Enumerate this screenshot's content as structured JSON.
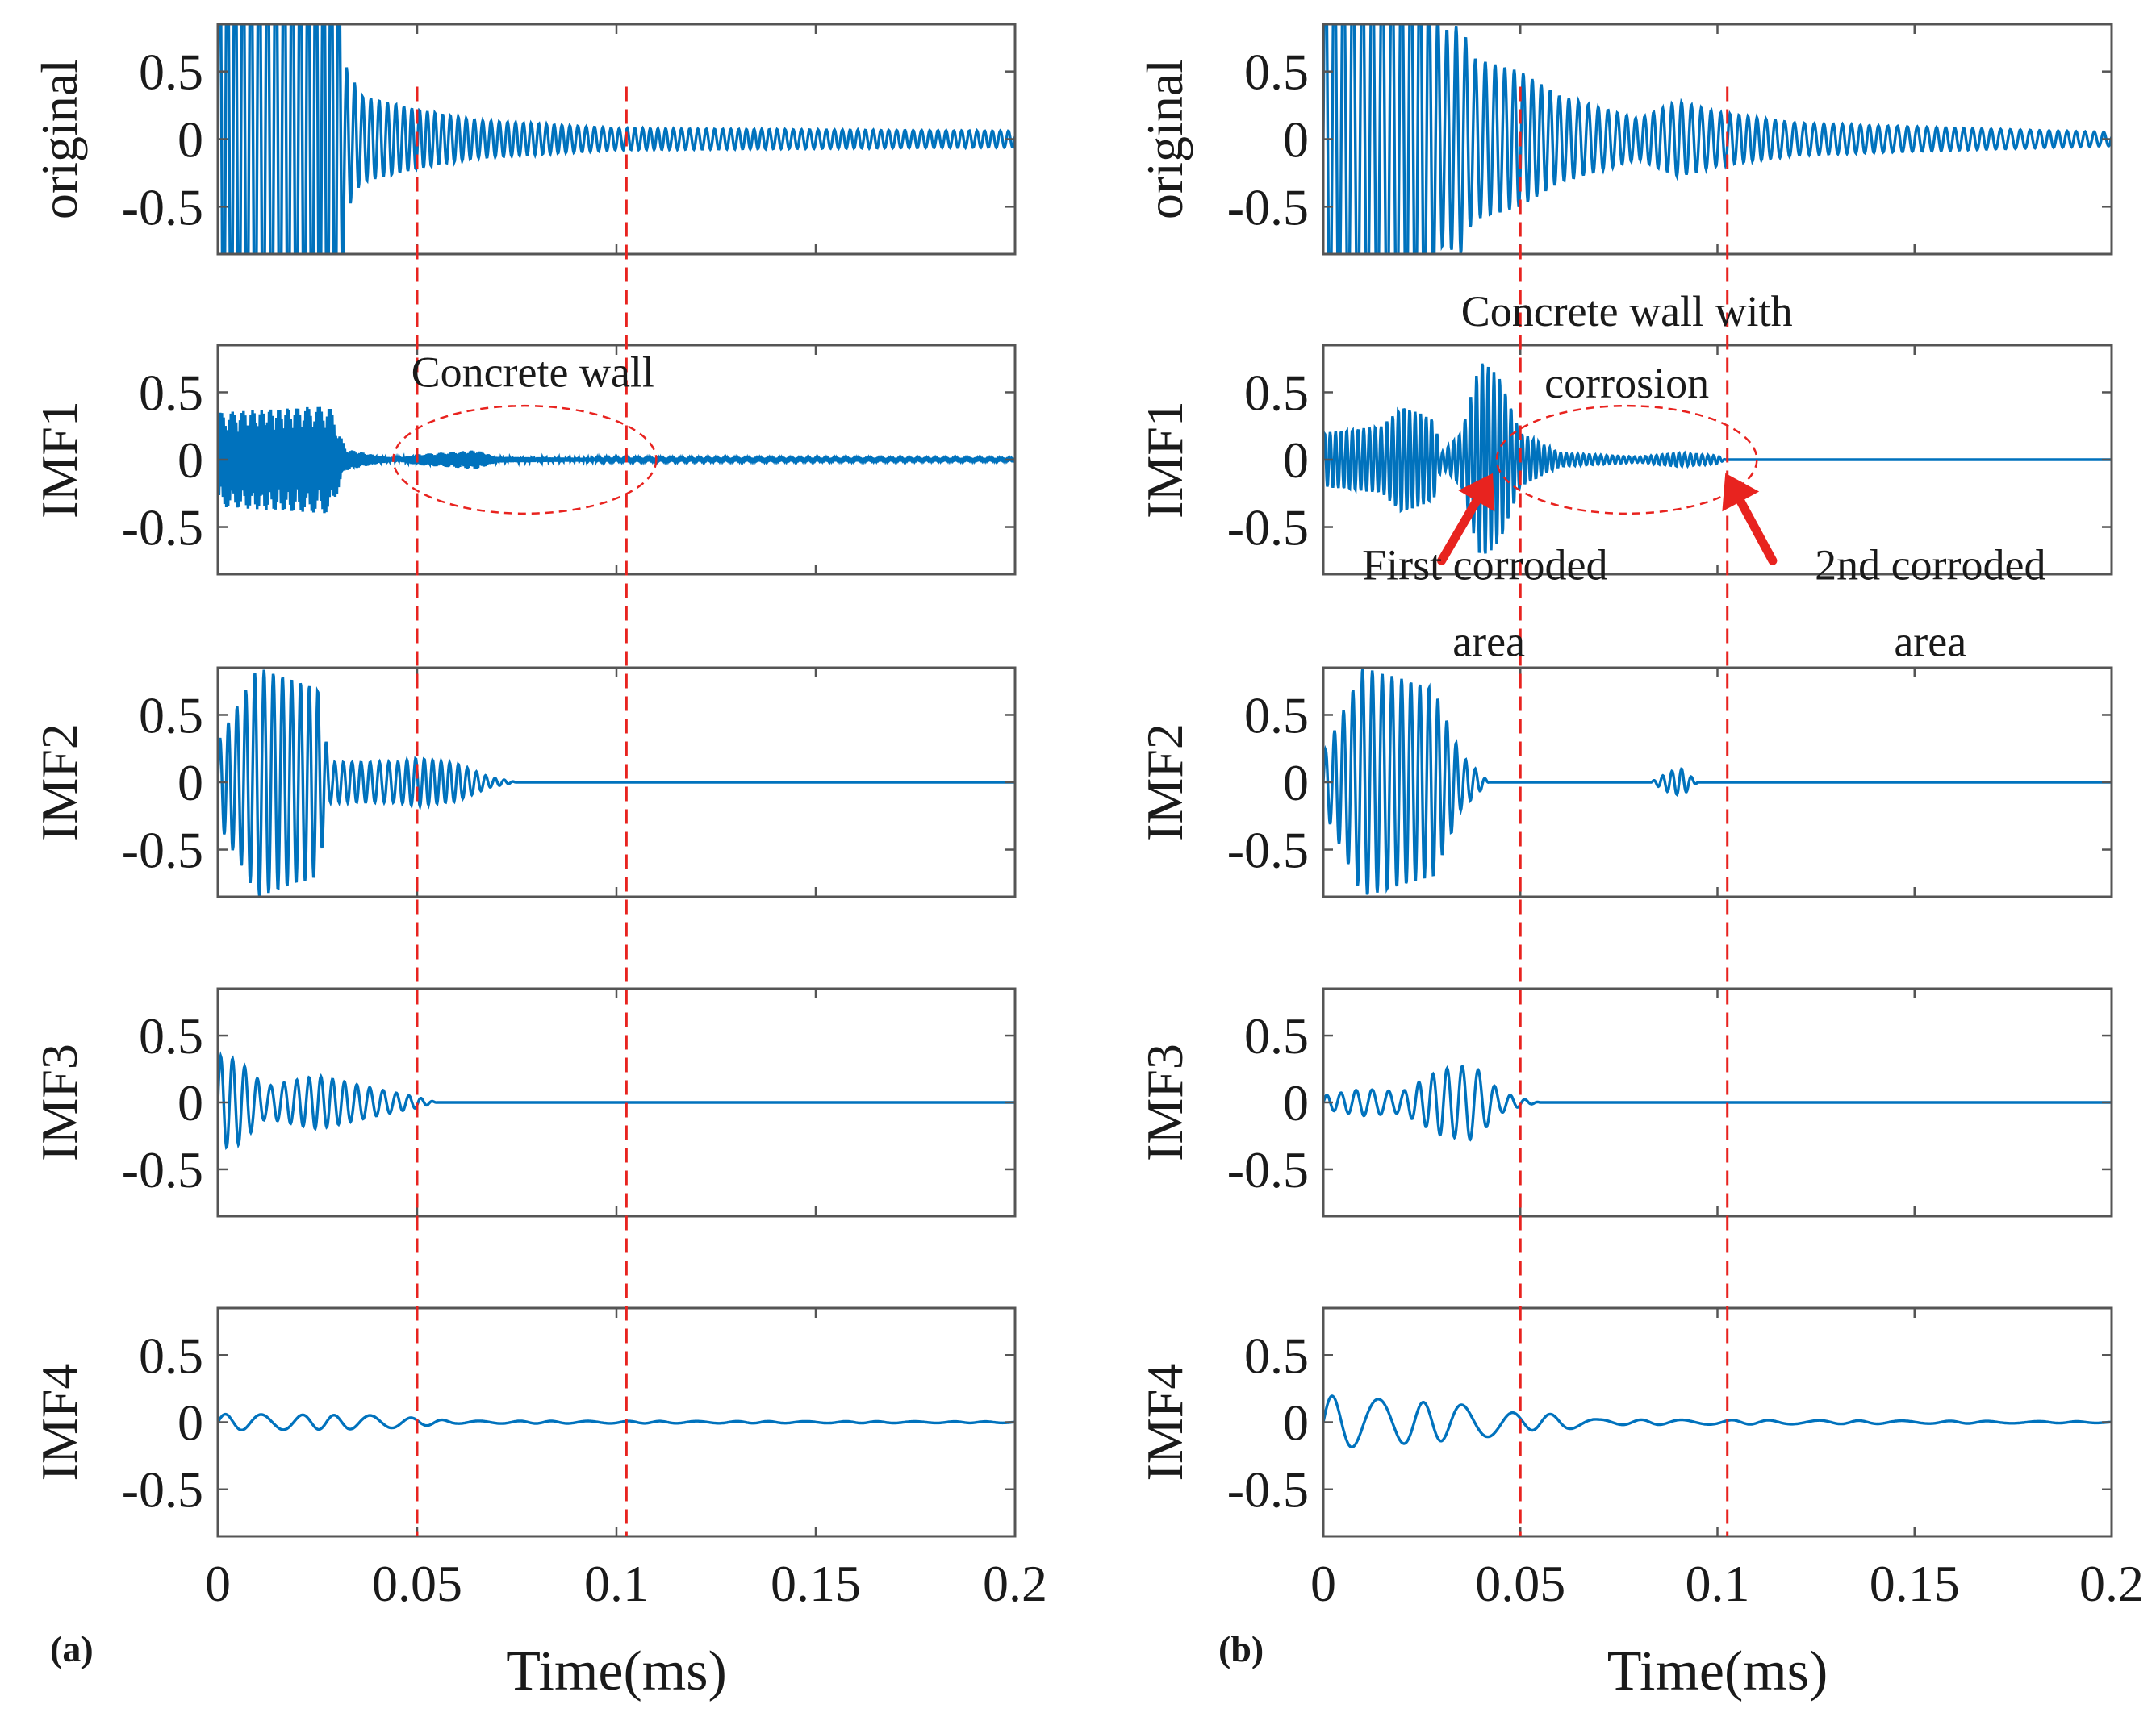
{
  "chart_data": [
    {
      "type": "line",
      "panel_label": "(a)",
      "xlabel": "Time(ms)",
      "xlim": [
        0,
        0.2
      ],
      "x_ticks": [
        "0",
        "0.05",
        "0.1",
        "0.15",
        "0.2"
      ],
      "ylim": [
        -0.85,
        0.85
      ],
      "y_ticks": [
        "0.5",
        "0",
        "-0.5"
      ],
      "grid": false,
      "line_color": "#0072BD",
      "marker_color": "#e8231f",
      "vertical_markers_ms": [
        0.05,
        0.1025
      ],
      "series": [
        {
          "name": "original",
          "envelope": [
            [
              0,
              1.8
            ],
            [
              0.03,
              1.8
            ],
            [
              0.032,
              0.55
            ],
            [
              0.036,
              0.32
            ],
            [
              0.05,
              0.22
            ],
            [
              0.065,
              0.14
            ],
            [
              0.1,
              0.08
            ],
            [
              0.2,
              0.06
            ]
          ],
          "freq": 500,
          "baseline": 0
        },
        {
          "name": "IMF1",
          "envelope": [
            [
              0,
              0.35
            ],
            [
              0.028,
              0.4
            ],
            [
              0.032,
              0.08
            ],
            [
              0.04,
              0.03
            ],
            [
              0.045,
              0.01
            ],
            [
              0.05,
              0.04
            ],
            [
              0.065,
              0.07
            ],
            [
              0.07,
              0.02
            ],
            [
              0.1,
              0.01
            ],
            [
              0.2,
              0.008
            ]
          ],
          "freq": 2200,
          "baseline": 0
        },
        {
          "name": "IMF2",
          "envelope": [
            [
              0,
              0.3
            ],
            [
              0.01,
              0.85
            ],
            [
              0.025,
              0.7
            ],
            [
              0.028,
              0.15
            ],
            [
              0.045,
              0.15
            ],
            [
              0.05,
              0.18
            ],
            [
              0.06,
              0.14
            ],
            [
              0.068,
              0.04
            ],
            [
              0.075,
              0
            ],
            [
              0.2,
              0
            ]
          ],
          "freq": 450,
          "baseline": 0
        },
        {
          "name": "IMF3",
          "envelope": [
            [
              0,
              0.35
            ],
            [
              0.005,
              0.32
            ],
            [
              0.012,
              0.12
            ],
            [
              0.025,
              0.2
            ],
            [
              0.04,
              0.1
            ],
            [
              0.05,
              0.04
            ],
            [
              0.055,
              0
            ],
            [
              0.2,
              0
            ]
          ],
          "freq": 320,
          "baseline": 0
        },
        {
          "name": "IMF4",
          "envelope": [
            [
              0,
              0.06
            ],
            [
              0.04,
              0.05
            ],
            [
              0.05,
              0.03
            ],
            [
              0.06,
              0.01
            ],
            [
              0.2,
              0.005
            ]
          ],
          "freq": 110,
          "baseline": 0
        }
      ],
      "annotations": [
        {
          "text": "Concrete wall",
          "row": "IMF1",
          "x": 0.079,
          "y": 0.65,
          "ellipse": {
            "cx": 0.077,
            "cy": 0,
            "rx": 0.033,
            "ry": 0.4
          }
        }
      ]
    },
    {
      "type": "line",
      "panel_label": "(b)",
      "xlabel": "Time(ms)",
      "xlim": [
        0,
        0.2
      ],
      "x_ticks": [
        "0",
        "0.05",
        "0.1",
        "0.15",
        "0.2"
      ],
      "ylim": [
        -0.85,
        0.85
      ],
      "y_ticks": [
        "0.5",
        "0",
        "-0.5"
      ],
      "grid": false,
      "line_color": "#0072BD",
      "marker_color": "#e8231f",
      "vertical_markers_ms": [
        0.05,
        0.1025
      ],
      "series": [
        {
          "name": "original",
          "envelope": [
            [
              0,
              1.5
            ],
            [
              0.025,
              1.5
            ],
            [
              0.03,
              0.8
            ],
            [
              0.035,
              0.85
            ],
            [
              0.038,
              0.6
            ],
            [
              0.05,
              0.5
            ],
            [
              0.06,
              0.32
            ],
            [
              0.08,
              0.15
            ],
            [
              0.09,
              0.28
            ],
            [
              0.1,
              0.2
            ],
            [
              0.12,
              0.12
            ],
            [
              0.14,
              0.1
            ],
            [
              0.2,
              0.05
            ]
          ],
          "freq": 420,
          "baseline": 0
        },
        {
          "name": "IMF1",
          "envelope": [
            [
              0,
              0.2
            ],
            [
              0.015,
              0.25
            ],
            [
              0.02,
              0.4
            ],
            [
              0.028,
              0.3
            ],
            [
              0.03,
              0.05
            ],
            [
              0.035,
              0.2
            ],
            [
              0.04,
              0.75
            ],
            [
              0.045,
              0.6
            ],
            [
              0.05,
              0.2
            ],
            [
              0.06,
              0.05
            ],
            [
              0.08,
              0.02
            ],
            [
              0.09,
              0.05
            ],
            [
              0.1,
              0.03
            ],
            [
              0.102,
              0
            ],
            [
              0.2,
              0
            ]
          ],
          "freq": 700,
          "baseline": 0
        },
        {
          "name": "IMF2",
          "envelope": [
            [
              0,
              0.2
            ],
            [
              0.01,
              0.85
            ],
            [
              0.028,
              0.7
            ],
            [
              0.035,
              0.2
            ],
            [
              0.04,
              0.06
            ],
            [
              0.042,
              0
            ],
            [
              0.083,
              0
            ],
            [
              0.088,
              0.08
            ],
            [
              0.091,
              0.1
            ],
            [
              0.095,
              0
            ],
            [
              0.2,
              0
            ]
          ],
          "freq": 420,
          "baseline": 0
        },
        {
          "name": "IMF3",
          "envelope": [
            [
              0,
              0.05
            ],
            [
              0.01,
              0.1
            ],
            [
              0.02,
              0.08
            ],
            [
              0.03,
              0.25
            ],
            [
              0.038,
              0.28
            ],
            [
              0.045,
              0.08
            ],
            [
              0.05,
              0.03
            ],
            [
              0.055,
              0
            ],
            [
              0.2,
              0
            ]
          ],
          "freq": 260,
          "baseline": 0
        },
        {
          "name": "IMF4",
          "envelope": [
            [
              0,
              0.2
            ],
            [
              0.02,
              0.16
            ],
            [
              0.04,
              0.12
            ],
            [
              0.05,
              0.06
            ],
            [
              0.06,
              0.06
            ],
            [
              0.07,
              0.02
            ],
            [
              0.2,
              0.005
            ]
          ],
          "freq": 90,
          "baseline": 0
        }
      ],
      "annotations": [
        {
          "text": "Concrete wall with",
          "row": "IMF1",
          "x": 0.077,
          "y": 1.1
        },
        {
          "text": "corrosion",
          "row": "IMF1",
          "x": 0.077,
          "y": 0.57
        },
        {
          "text": "First corroded",
          "row": "IMF1",
          "x": 0.041,
          "y": -0.78
        },
        {
          "text": "area",
          "row": "IMF1",
          "x": 0.042,
          "y": -1.35
        },
        {
          "text": "2nd corroded",
          "row": "IMF1",
          "x": 0.154,
          "y": -0.78
        },
        {
          "text": "area",
          "row": "IMF1",
          "x": 0.154,
          "y": -1.35
        }
      ],
      "ellipse": {
        "row": "IMF1",
        "cx": 0.077,
        "cy": 0,
        "rx": 0.033,
        "ry": 0.4
      },
      "arrows": [
        {
          "row": "IMF1",
          "from": [
            0.03,
            -0.75
          ],
          "to": [
            0.043,
            -0.1
          ]
        },
        {
          "row": "IMF1",
          "from": [
            0.114,
            -0.75
          ],
          "to": [
            0.102,
            -0.1
          ]
        }
      ]
    }
  ]
}
